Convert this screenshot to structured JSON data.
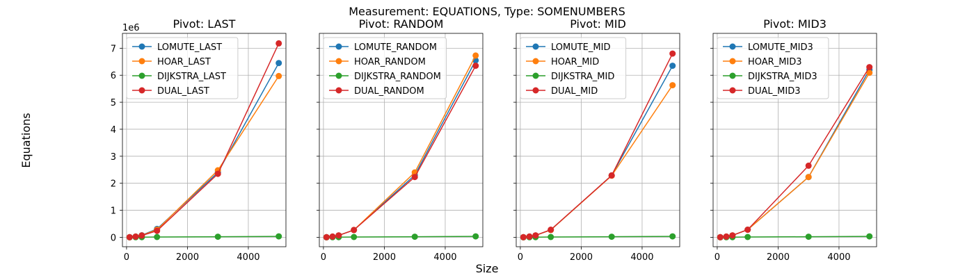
{
  "figure": {
    "suptitle": "Measurement: EQUATIONS, Type: SOMENUMBERS",
    "xlabel": "Size",
    "ylabel": "Equations",
    "y_exponent_label": "1e6"
  },
  "chart_data": [
    {
      "type": "line",
      "title": "Pivot: LAST",
      "x": [
        100,
        300,
        500,
        1000,
        3000,
        5000
      ],
      "xlim": [
        -135,
        5235
      ],
      "ylim": [
        -350000,
        7550000
      ],
      "xticks": [
        0,
        2000,
        4000
      ],
      "xtick_labels": [
        "0",
        "2000",
        "4000"
      ],
      "yticks": [
        0,
        1000000,
        2000000,
        3000000,
        4000000,
        5000000,
        6000000,
        7000000
      ],
      "ytick_labels": [
        "0",
        "1",
        "2",
        "3",
        "4",
        "5",
        "6",
        "7"
      ],
      "grid": true,
      "legend": "upper-left",
      "series": [
        {
          "name": "LOMUTE_LAST",
          "color": "#1f77b4",
          "values": [
            3000,
            27000,
            75000,
            310000,
            2400000,
            6450000
          ]
        },
        {
          "name": "HOAR_LAST",
          "color": "#ff7f0e",
          "values": [
            3000,
            25000,
            70000,
            280000,
            2480000,
            5970000
          ]
        },
        {
          "name": "DIJKSTRA_LAST",
          "color": "#2ca02c",
          "values": [
            1000,
            3000,
            5000,
            10000,
            20000,
            33000
          ]
        },
        {
          "name": "DUAL_LAST",
          "color": "#d62728",
          "values": [
            3000,
            24000,
            65000,
            240000,
            2350000,
            7180000
          ]
        }
      ]
    },
    {
      "type": "line",
      "title": "Pivot: RANDOM",
      "x": [
        100,
        300,
        500,
        1000,
        3000,
        5000
      ],
      "xlim": [
        -135,
        5235
      ],
      "ylim": [
        -350000,
        7550000
      ],
      "xticks": [
        0,
        2000,
        4000
      ],
      "xtick_labels": [
        "0",
        "2000",
        "4000"
      ],
      "yticks": [
        0,
        1000000,
        2000000,
        3000000,
        4000000,
        5000000,
        6000000,
        7000000
      ],
      "ytick_labels": [
        "0",
        "1",
        "2",
        "3",
        "4",
        "5",
        "6",
        "7"
      ],
      "grid": true,
      "legend": "upper-left",
      "series": [
        {
          "name": "LOMUTE_RANDOM",
          "color": "#1f77b4",
          "values": [
            3000,
            25000,
            70000,
            270000,
            2300000,
            6550000
          ]
        },
        {
          "name": "HOAR_RANDOM",
          "color": "#ff7f0e",
          "values": [
            3000,
            25000,
            70000,
            270000,
            2400000,
            6730000
          ]
        },
        {
          "name": "DIJKSTRA_RANDOM",
          "color": "#2ca02c",
          "values": [
            1000,
            3000,
            5000,
            10000,
            20000,
            33000
          ]
        },
        {
          "name": "DUAL_RANDOM",
          "color": "#d62728",
          "values": [
            3000,
            25000,
            70000,
            270000,
            2230000,
            6350000
          ]
        }
      ]
    },
    {
      "type": "line",
      "title": "Pivot: MID",
      "x": [
        100,
        300,
        500,
        1000,
        3000,
        5000
      ],
      "xlim": [
        -135,
        5235
      ],
      "ylim": [
        -350000,
        7550000
      ],
      "xticks": [
        0,
        2000,
        4000
      ],
      "xtick_labels": [
        "0",
        "2000",
        "4000"
      ],
      "yticks": [
        0,
        1000000,
        2000000,
        3000000,
        4000000,
        5000000,
        6000000,
        7000000
      ],
      "ytick_labels": [
        "0",
        "1",
        "2",
        "3",
        "4",
        "5",
        "6",
        "7"
      ],
      "grid": true,
      "legend": "upper-left",
      "series": [
        {
          "name": "LOMUTE_MID",
          "color": "#1f77b4",
          "values": [
            3000,
            25000,
            70000,
            270000,
            2290000,
            6350000
          ]
        },
        {
          "name": "HOAR_MID",
          "color": "#ff7f0e",
          "values": [
            3000,
            25000,
            70000,
            270000,
            2280000,
            5630000
          ]
        },
        {
          "name": "DIJKSTRA_MID",
          "color": "#2ca02c",
          "values": [
            1000,
            3000,
            5000,
            10000,
            20000,
            33000
          ]
        },
        {
          "name": "DUAL_MID",
          "color": "#d62728",
          "values": [
            3000,
            25000,
            70000,
            280000,
            2290000,
            6800000
          ]
        }
      ]
    },
    {
      "type": "line",
      "title": "Pivot: MID3",
      "x": [
        100,
        300,
        500,
        1000,
        3000,
        5000
      ],
      "xlim": [
        -135,
        5235
      ],
      "ylim": [
        -350000,
        7550000
      ],
      "xticks": [
        0,
        2000,
        4000
      ],
      "xtick_labels": [
        "0",
        "2000",
        "4000"
      ],
      "yticks": [
        0,
        1000000,
        2000000,
        3000000,
        4000000,
        5000000,
        6000000,
        7000000
      ],
      "ytick_labels": [
        "0",
        "1",
        "2",
        "3",
        "4",
        "5",
        "6",
        "7"
      ],
      "grid": true,
      "legend": "upper-left",
      "series": [
        {
          "name": "LOMUTE_MID3",
          "color": "#1f77b4",
          "values": [
            3000,
            25000,
            70000,
            280000,
            2230000,
            6200000
          ]
        },
        {
          "name": "HOAR_MID3",
          "color": "#ff7f0e",
          "values": [
            3000,
            25000,
            70000,
            280000,
            2230000,
            6090000
          ]
        },
        {
          "name": "DIJKSTRA_MID3",
          "color": "#2ca02c",
          "values": [
            1000,
            3000,
            5000,
            10000,
            20000,
            33000
          ]
        },
        {
          "name": "DUAL_MID3",
          "color": "#d62728",
          "values": [
            3000,
            25000,
            70000,
            280000,
            2650000,
            6300000
          ]
        }
      ]
    }
  ]
}
